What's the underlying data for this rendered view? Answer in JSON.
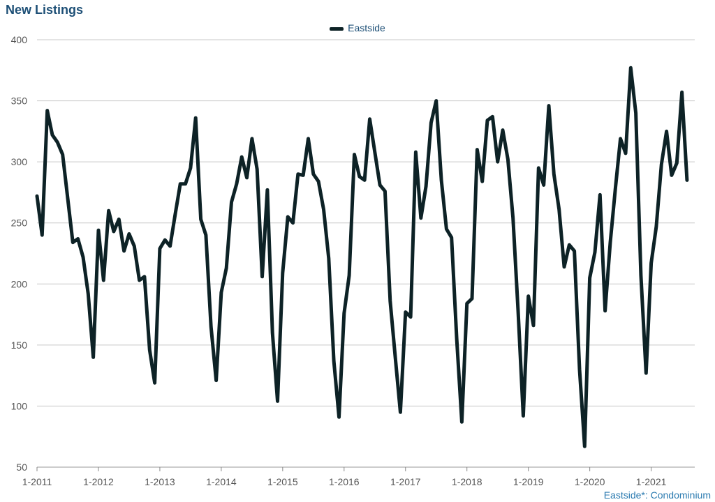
{
  "title": "New Listings",
  "footnote": "Eastside*: Condominium",
  "colors": {
    "series": "#0d2226",
    "grid": "#c8c8c8",
    "title": "#1d4f76",
    "footnote": "#2a7ab0"
  },
  "chart_data": {
    "type": "line",
    "title": "New Listings",
    "xlabel": "",
    "ylabel": "",
    "ylim": [
      50,
      400
    ],
    "yticks": [
      50,
      100,
      150,
      200,
      250,
      300,
      350,
      400
    ],
    "xticks": [
      "1-2011",
      "1-2012",
      "1-2013",
      "1-2014",
      "1-2015",
      "1-2016",
      "1-2017",
      "1-2018",
      "1-2019",
      "1-2020",
      "1-2021"
    ],
    "grid": true,
    "legend_position": "top-center",
    "series": [
      {
        "name": "Eastside",
        "start": "1-2011",
        "values": [
          272,
          240,
          342,
          322,
          316,
          306,
          270,
          234,
          237,
          222,
          192,
          140,
          244,
          203,
          260,
          243,
          253,
          227,
          241,
          231,
          203,
          206,
          146,
          119,
          229,
          236,
          231,
          257,
          282,
          282,
          295,
          336,
          253,
          240,
          165,
          121,
          193,
          213,
          267,
          282,
          304,
          287,
          319,
          294,
          206,
          277,
          160,
          104,
          209,
          255,
          250,
          290,
          289,
          319,
          290,
          284,
          261,
          221,
          137,
          91,
          176,
          207,
          306,
          288,
          285,
          335,
          308,
          281,
          276,
          186,
          140,
          95,
          177,
          173,
          308,
          254,
          280,
          332,
          350,
          285,
          245,
          238,
          155,
          87,
          184,
          188,
          310,
          284,
          334,
          337,
          300,
          326,
          302,
          254,
          178,
          92,
          190,
          166,
          295,
          281,
          346,
          290,
          261,
          214,
          232,
          227,
          130,
          67,
          205,
          226,
          273,
          178,
          234,
          278,
          319,
          307,
          377,
          340,
          207,
          127,
          217,
          247,
          298,
          325,
          289,
          299,
          357,
          285
        ]
      }
    ]
  }
}
